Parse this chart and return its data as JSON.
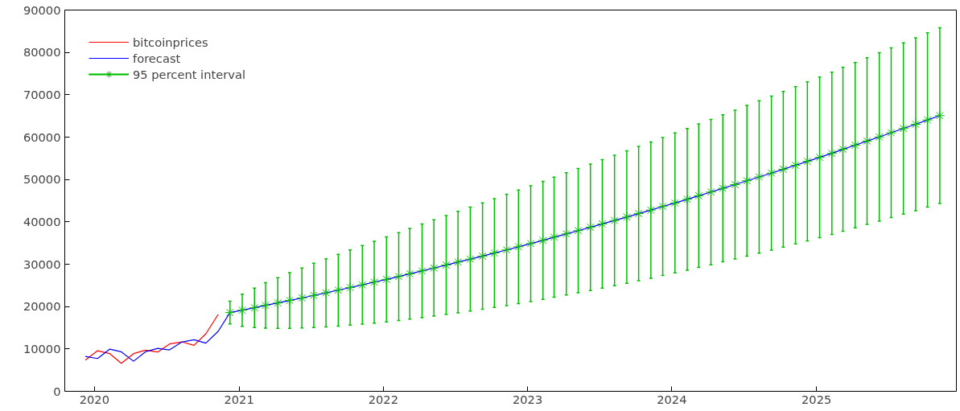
{
  "chart_data": {
    "type": "line",
    "xlim": [
      "2019-10-18",
      "2025-12-21"
    ],
    "xticks": [
      {
        "value": "2020",
        "label": "2020"
      },
      {
        "value": "2021",
        "label": "2021"
      },
      {
        "value": "2022",
        "label": "2022"
      },
      {
        "value": "2023",
        "label": "2023"
      },
      {
        "value": "2024",
        "label": "2024"
      },
      {
        "value": "2025",
        "label": "2025"
      }
    ],
    "ylim": [
      0,
      90000
    ],
    "yticks": [
      0,
      10000,
      20000,
      30000,
      40000,
      50000,
      60000,
      70000,
      80000,
      90000
    ],
    "grid": false,
    "legend": "top left",
    "series": [
      {
        "name": "bitcoinprices",
        "color": "#ff0000",
        "x": [
          "2019-12-09",
          "2020-01-09",
          "2020-02-09",
          "2020-03-09",
          "2020-04-09",
          "2020-05-09",
          "2020-06-09",
          "2020-07-09",
          "2020-08-09",
          "2020-09-09",
          "2020-10-09",
          "2020-11-09"
        ],
        "values": [
          7370,
          9570,
          8890,
          6600,
          8890,
          9700,
          9270,
          11170,
          11670,
          10850,
          13570,
          18140
        ]
      },
      {
        "name": "forecast",
        "color": "#0000ff",
        "x": [
          "2019-12-09",
          "2020-01-09",
          "2020-02-09",
          "2020-03-09",
          "2020-04-09",
          "2020-05-09",
          "2020-06-09",
          "2020-07-09",
          "2020-08-09",
          "2020-09-09",
          "2020-10-09",
          "2020-11-09",
          "2020-12-09",
          "2021-01-09",
          "2021-02-09",
          "2021-03-09",
          "2021-04-09",
          "2021-05-09",
          "2021-06-09",
          "2021-07-09",
          "2021-08-09",
          "2021-09-09",
          "2021-10-09",
          "2021-11-09",
          "2021-12-09",
          "2022-01-09",
          "2022-02-09",
          "2022-03-09",
          "2022-04-09",
          "2022-05-09",
          "2022-06-09",
          "2022-07-09",
          "2022-08-09",
          "2022-09-09",
          "2022-10-09",
          "2022-11-09",
          "2022-12-09",
          "2023-01-09",
          "2023-02-09",
          "2023-03-09",
          "2023-04-09",
          "2023-05-09",
          "2023-06-09",
          "2023-07-09",
          "2023-08-09",
          "2023-09-09",
          "2023-10-09",
          "2023-11-09",
          "2023-12-09",
          "2024-01-09",
          "2024-02-09",
          "2024-03-09",
          "2024-04-09",
          "2024-05-09",
          "2024-06-09",
          "2024-07-09",
          "2024-08-09",
          "2024-09-09",
          "2024-10-09",
          "2024-11-09",
          "2024-12-09",
          "2025-01-09",
          "2025-02-09",
          "2025-03-09",
          "2025-04-09",
          "2025-05-09",
          "2025-06-09",
          "2025-07-09",
          "2025-08-09",
          "2025-09-09",
          "2025-10-09",
          "2025-11-09"
        ],
        "values": [
          8240,
          7740,
          9950,
          9320,
          7100,
          9320,
          10140,
          9760,
          11610,
          12180,
          11360,
          14140,
          18590,
          19140,
          19710,
          20280,
          20850,
          21440,
          22030,
          22640,
          23250,
          23870,
          24490,
          25130,
          25770,
          26420,
          27080,
          27750,
          28420,
          29100,
          29800,
          30500,
          31200,
          31920,
          32640,
          33370,
          34110,
          34860,
          35620,
          36380,
          37150,
          37930,
          38720,
          39520,
          40320,
          41130,
          41950,
          42780,
          43620,
          44460,
          45310,
          46170,
          47040,
          47920,
          48800,
          49700,
          50600,
          51510,
          52420,
          53350,
          54280,
          55220,
          56170,
          57130,
          58100,
          59070,
          60050,
          61040,
          62040,
          63040,
          64060,
          65080
        ]
      },
      {
        "name": "95 percent interval",
        "type": "scatter",
        "marker": "cross",
        "color": "#00c000",
        "x": [
          "2020-12-09",
          "2021-01-09",
          "2021-02-09",
          "2021-03-09",
          "2021-04-09",
          "2021-05-09",
          "2021-06-09",
          "2021-07-09",
          "2021-08-09",
          "2021-09-09",
          "2021-10-09",
          "2021-11-09",
          "2021-12-09",
          "2022-01-09",
          "2022-02-09",
          "2022-03-09",
          "2022-04-09",
          "2022-05-09",
          "2022-06-09",
          "2022-07-09",
          "2022-08-09",
          "2022-09-09",
          "2022-10-09",
          "2022-11-09",
          "2022-12-09",
          "2023-01-09",
          "2023-02-09",
          "2023-03-09",
          "2023-04-09",
          "2023-05-09",
          "2023-06-09",
          "2023-07-09",
          "2023-08-09",
          "2023-09-09",
          "2023-10-09",
          "2023-11-09",
          "2023-12-09",
          "2024-01-09",
          "2024-02-09",
          "2024-03-09",
          "2024-04-09",
          "2024-05-09",
          "2024-06-09",
          "2024-07-09",
          "2024-08-09",
          "2024-09-09",
          "2024-10-09",
          "2024-11-09",
          "2024-12-09",
          "2025-01-09",
          "2025-02-09",
          "2025-03-09",
          "2025-04-09",
          "2025-05-09",
          "2025-06-09",
          "2025-07-09",
          "2025-08-09",
          "2025-09-09",
          "2025-10-09",
          "2025-11-09"
        ],
        "values": [
          18590,
          19140,
          19710,
          20280,
          20850,
          21440,
          22030,
          22640,
          23250,
          23870,
          24490,
          25130,
          25770,
          26420,
          27080,
          27750,
          28420,
          29100,
          29800,
          30500,
          31200,
          31920,
          32640,
          33370,
          34110,
          34860,
          35620,
          36380,
          37150,
          37930,
          38720,
          39520,
          40320,
          41130,
          41950,
          42780,
          43620,
          44460,
          45310,
          46170,
          47040,
          47920,
          48800,
          49700,
          50600,
          51510,
          52420,
          53350,
          54280,
          55220,
          56170,
          57130,
          58100,
          59070,
          60050,
          61040,
          62040,
          63040,
          64060,
          65080
        ],
        "errors": [
          2680,
          3790,
          4640,
          5360,
          5990,
          6560,
          7090,
          7580,
          8040,
          8470,
          8890,
          9280,
          9660,
          10030,
          10380,
          10720,
          11050,
          11370,
          11680,
          11980,
          12280,
          12570,
          12850,
          13130,
          13400,
          13670,
          13930,
          14180,
          14430,
          14680,
          14920,
          15160,
          15400,
          15630,
          15850,
          16080,
          16300,
          16520,
          16740,
          16950,
          17160,
          17370,
          17570,
          17780,
          17980,
          18180,
          18370,
          18570,
          18760,
          18950,
          19140,
          19330,
          19510,
          19690,
          19870,
          20050,
          20230,
          20410,
          20590,
          20760
        ]
      }
    ]
  }
}
